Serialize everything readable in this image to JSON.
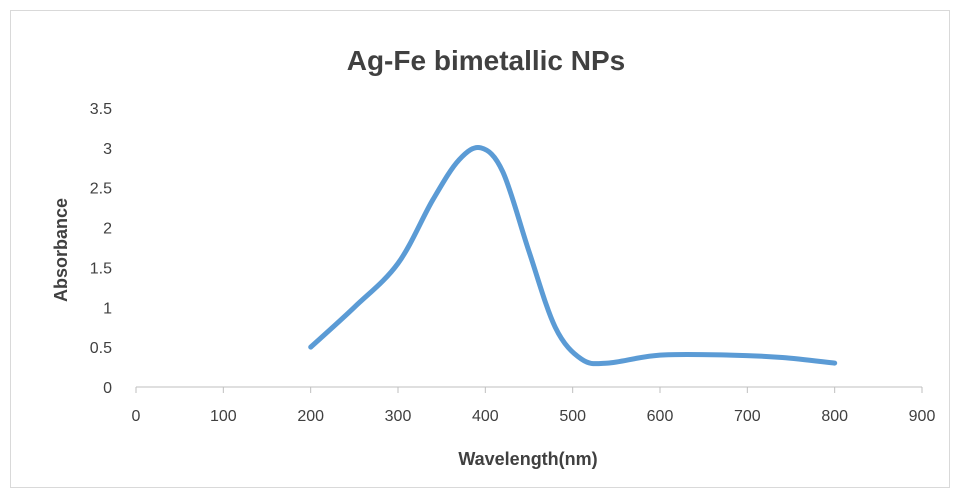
{
  "chart_data": {
    "type": "line",
    "title": "Ag-Fe bimetallic NPs",
    "xlabel": "Wavelength(nm)",
    "ylabel": "Absorbance",
    "xlim": [
      0,
      900
    ],
    "ylim": [
      0,
      3.5
    ],
    "x_ticks": [
      "0",
      "100",
      "200",
      "300",
      "400",
      "500",
      "600",
      "700",
      "800",
      "900"
    ],
    "y_ticks": [
      "0",
      "0.5",
      "1",
      "1.5",
      "2",
      "2.5",
      "3",
      "3.5"
    ],
    "grid": false,
    "legend": "none",
    "smooth": true,
    "series": [
      {
        "color": "#5b9bd5",
        "x": [
          200,
          250,
          300,
          340,
          370,
          395,
          420,
          450,
          480,
          510,
          540,
          600,
          680,
          740,
          800
        ],
        "y": [
          0.5,
          1.0,
          1.55,
          2.35,
          2.85,
          3.0,
          2.7,
          1.7,
          0.75,
          0.35,
          0.3,
          0.4,
          0.4,
          0.37,
          0.3
        ]
      }
    ]
  }
}
